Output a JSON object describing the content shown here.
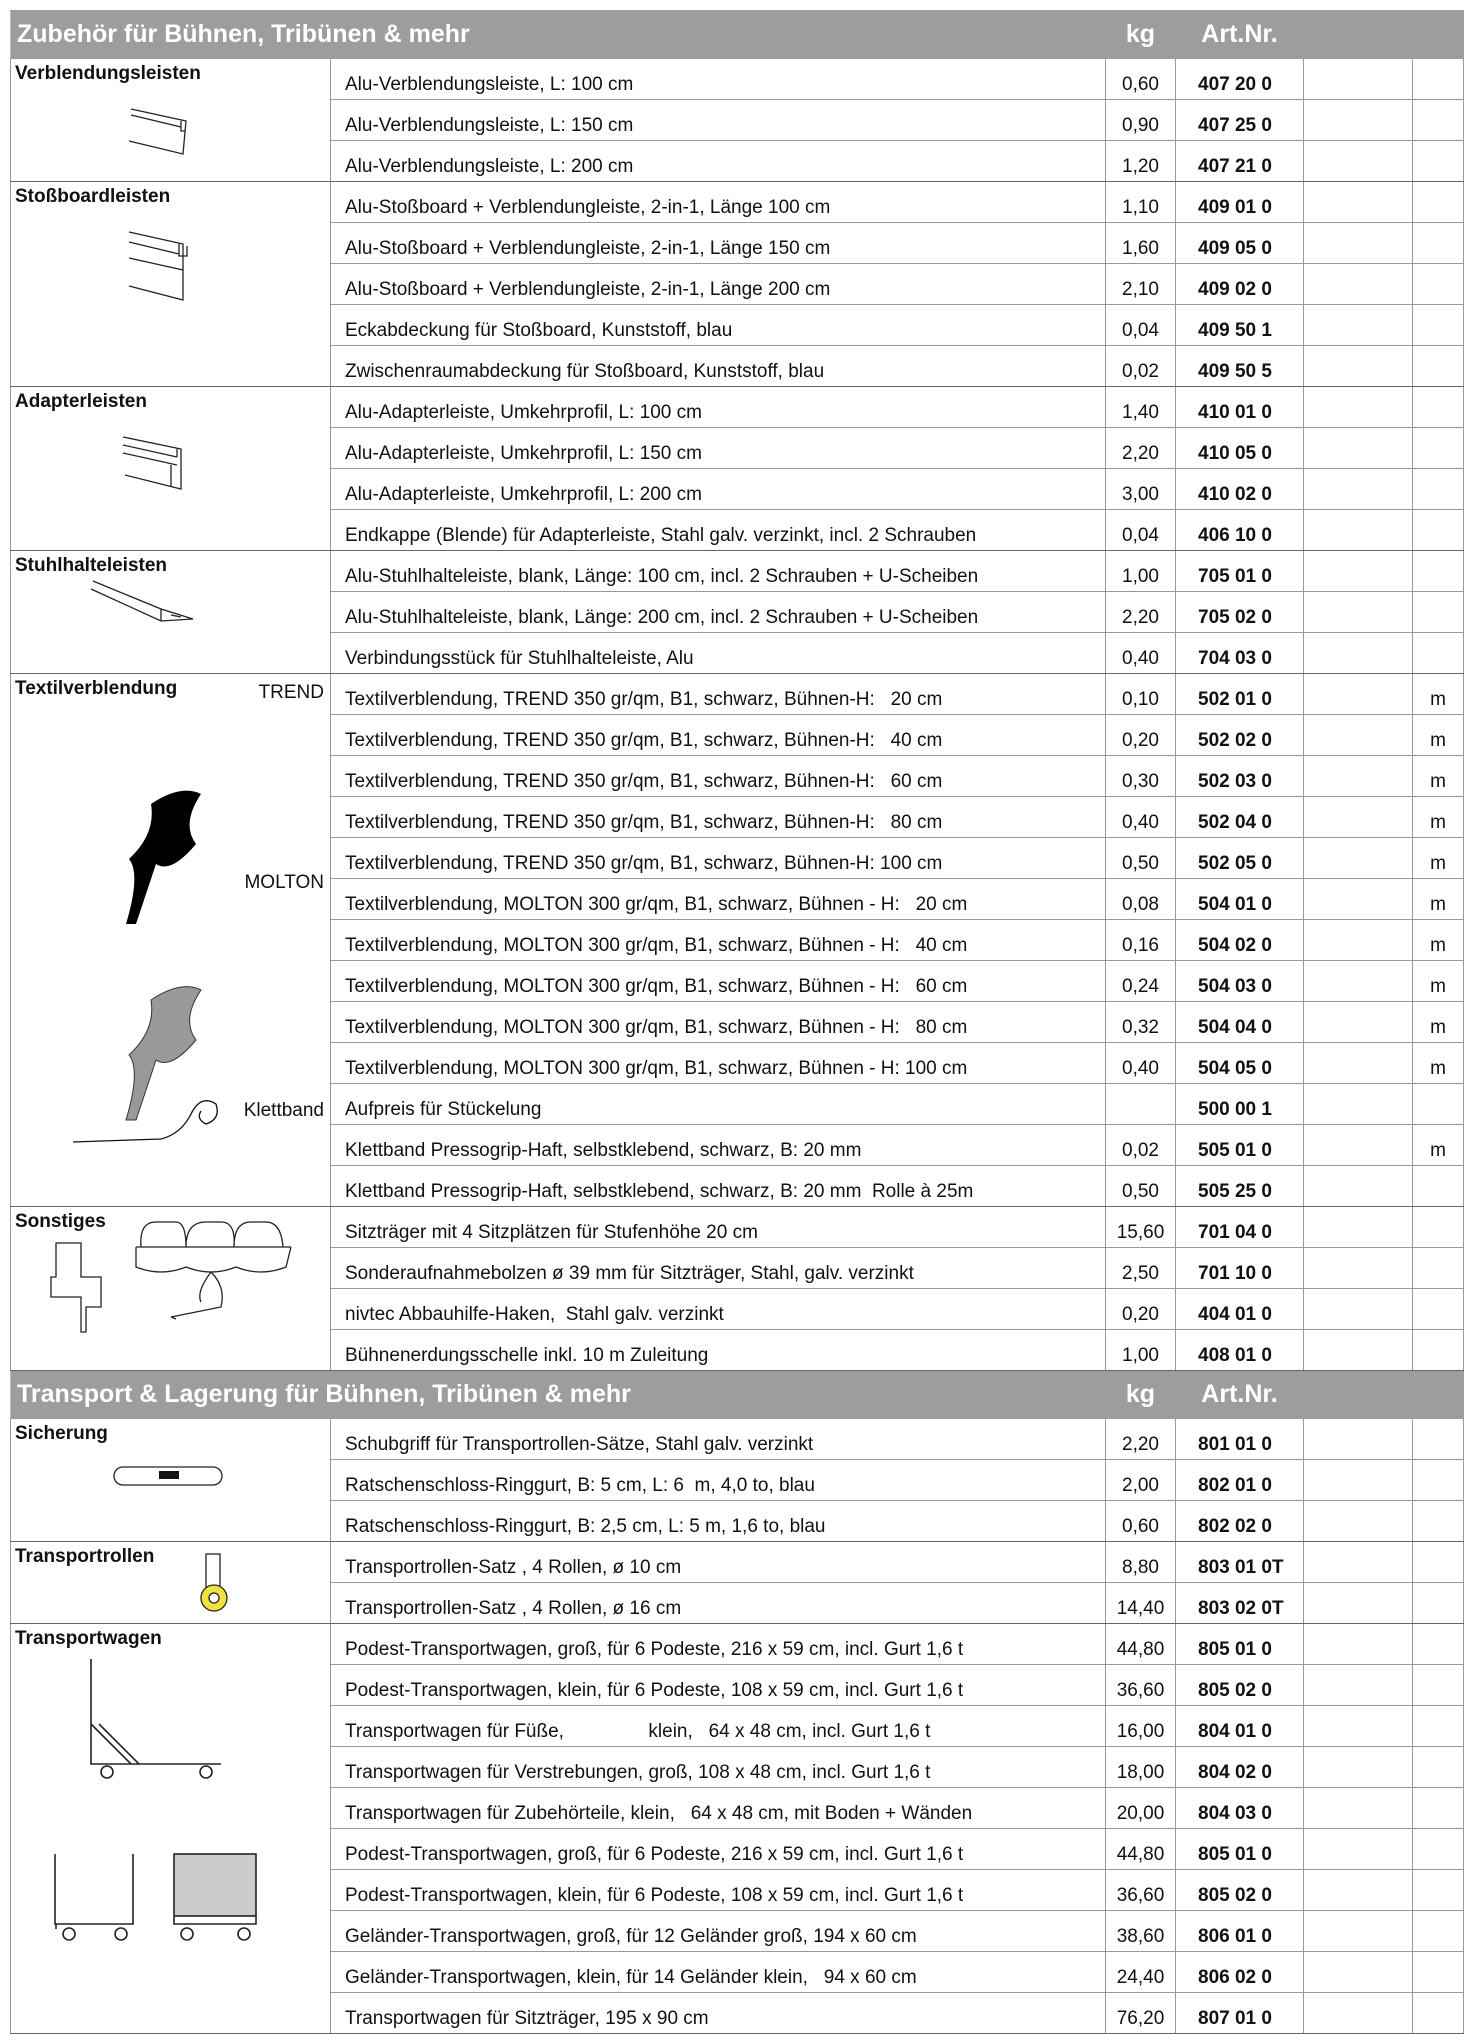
{
  "sections": [
    {
      "header": {
        "title": "Zubehör für Bühnen, Tribünen & mehr",
        "kg": "kg",
        "art": "Art.Nr."
      },
      "groups": [
        {
          "label": "Verblendungsleisten",
          "rows": [
            {
              "desc": "Alu-Verblendungsleiste, L: 100 cm",
              "kg": "0,60",
              "art": "407 20 0"
            },
            {
              "desc": "Alu-Verblendungsleiste, L: 150 cm",
              "kg": "0,90",
              "art": "407 25 0"
            },
            {
              "desc": "Alu-Verblendungsleiste, L: 200 cm",
              "kg": "1,20",
              "art": "407 21 0"
            }
          ]
        },
        {
          "label": "Stoßboardleisten",
          "rows": [
            {
              "desc": "Alu-Stoßboard + Verblendungleiste, 2-in-1, Länge 100 cm",
              "kg": "1,10",
              "art": "409 01 0"
            },
            {
              "desc": "Alu-Stoßboard + Verblendungleiste, 2-in-1, Länge 150 cm",
              "kg": "1,60",
              "art": "409 05 0"
            },
            {
              "desc": "Alu-Stoßboard + Verblendungleiste, 2-in-1, Länge 200 cm",
              "kg": "2,10",
              "art": "409 02 0"
            },
            {
              "desc": "Eckabdeckung für Stoßboard, Kunststoff, blau",
              "kg": "0,04",
              "art": "409 50 1"
            },
            {
              "desc": "Zwischenraumabdeckung für Stoßboard, Kunststoff, blau",
              "kg": "0,02",
              "art": "409 50 5"
            }
          ]
        },
        {
          "label": "Adapterleisten",
          "rows": [
            {
              "desc": "Alu-Adapterleiste, Umkehrprofil, L: 100 cm",
              "kg": "1,40",
              "art": "410 01 0"
            },
            {
              "desc": "Alu-Adapterleiste, Umkehrprofil, L: 150 cm",
              "kg": "2,20",
              "art": "410 05 0"
            },
            {
              "desc": "Alu-Adapterleiste, Umkehrprofil, L: 200 cm",
              "kg": "3,00",
              "art": "410 02 0"
            },
            {
              "desc": "Endkappe (Blende) für Adapterleiste, Stahl galv. verzinkt, incl. 2 Schrauben",
              "kg": "0,04",
              "art": "406 10 0"
            }
          ]
        },
        {
          "label": "Stuhlhalteleisten",
          "rows": [
            {
              "desc": "Alu-Stuhlhalteleiste, blank, Länge: 100 cm, incl. 2 Schrauben + U-Scheiben",
              "kg": "1,00",
              "art": "705 01 0"
            },
            {
              "desc": "Alu-Stuhlhalteleiste, blank, Länge: 200 cm, incl. 2 Schrauben + U-Scheiben",
              "kg": "2,20",
              "art": "705 02 0"
            },
            {
              "desc": "Verbindungsstück für Stuhlhalteleiste, Alu",
              "kg": "0,40",
              "art": "704 03 0"
            }
          ]
        },
        {
          "label": "Textilverblendung",
          "rows": [
            {
              "tag": "TREND",
              "desc": "Textilverblendung, TREND 350 gr/qm, B1, schwarz, Bühnen-H:   20 cm",
              "kg": "0,10",
              "art": "502 01 0",
              "unit": "m"
            },
            {
              "desc": "Textilverblendung, TREND 350 gr/qm, B1, schwarz, Bühnen-H:   40 cm",
              "kg": "0,20",
              "art": "502 02 0",
              "unit": "m"
            },
            {
              "desc": "Textilverblendung, TREND 350 gr/qm, B1, schwarz, Bühnen-H:   60 cm",
              "kg": "0,30",
              "art": "502 03 0",
              "unit": "m"
            },
            {
              "desc": "Textilverblendung, TREND 350 gr/qm, B1, schwarz, Bühnen-H:   80 cm",
              "kg": "0,40",
              "art": "502 04 0",
              "unit": "m"
            },
            {
              "desc": "Textilverblendung, TREND 350 gr/qm, B1, schwarz, Bühnen-H: 100 cm",
              "kg": "0,50",
              "art": "502 05 0",
              "unit": "m"
            },
            {
              "tag": "MOLTON",
              "desc": "Textilverblendung, MOLTON 300 gr/qm, B1, schwarz, Bühnen - H:   20 cm",
              "kg": "0,08",
              "art": "504 01 0",
              "unit": "m"
            },
            {
              "desc": "Textilverblendung, MOLTON 300 gr/qm, B1, schwarz, Bühnen - H:   40 cm",
              "kg": "0,16",
              "art": "504 02 0",
              "unit": "m"
            },
            {
              "desc": "Textilverblendung, MOLTON 300 gr/qm, B1, schwarz, Bühnen - H:   60 cm",
              "kg": "0,24",
              "art": "504 03 0",
              "unit": "m"
            },
            {
              "desc": "Textilverblendung, MOLTON 300 gr/qm, B1, schwarz, Bühnen - H:   80 cm",
              "kg": "0,32",
              "art": "504 04 0",
              "unit": "m"
            },
            {
              "desc": "Textilverblendung, MOLTON 300 gr/qm, B1, schwarz, Bühnen - H: 100 cm",
              "kg": "0,40",
              "art": "504 05 0",
              "unit": "m"
            },
            {
              "desc": "Aufpreis für Stückelung",
              "art": "500 00 1"
            },
            {
              "tag": "Klettband",
              "desc": "Klettband Pressogrip-Haft, selbstklebend, schwarz, B: 20 mm",
              "kg": "0,02",
              "art": "505 01 0",
              "unit": "m"
            },
            {
              "desc": "Klettband Pressogrip-Haft, selbstklebend, schwarz, B: 20 mm  Rolle à 25m",
              "kg": "0,50",
              "art": "505 25 0"
            }
          ]
        },
        {
          "label": "Sonstiges",
          "rows": [
            {
              "desc": "Sitzträger mit 4 Sitzplätzen für Stufenhöhe 20 cm",
              "kg": "15,60",
              "art": "701 04 0"
            },
            {
              "desc": "Sonderaufnahmebolzen ø 39 mm für Sitzträger, Stahl, galv. verzinkt",
              "kg": "2,50",
              "art": "701 10 0"
            },
            {
              "desc": "nivtec Abbauhilfe-Haken,  Stahl galv. verzinkt",
              "kg": "0,20",
              "art": "404 01 0"
            },
            {
              "desc": "Bühnenerdungsschelle inkl. 10 m Zuleitung",
              "kg": "1,00",
              "art": "408 01 0"
            }
          ]
        }
      ]
    },
    {
      "header": {
        "title": "Transport & Lagerung für Bühnen, Tribünen & mehr",
        "kg": "kg",
        "art": "Art.Nr."
      },
      "groups": [
        {
          "label": "Sicherung",
          "rows": [
            {
              "desc": "Schubgriff für Transportrollen-Sätze, Stahl galv. verzinkt",
              "kg": "2,20",
              "art": "801 01 0"
            },
            {
              "desc": "Ratschenschloss-Ringgurt, B: 5 cm, L: 6  m, 4,0 to, blau",
              "kg": "2,00",
              "art": "802 01 0"
            },
            {
              "desc": "Ratschenschloss-Ringgurt, B: 2,5 cm, L: 5 m, 1,6 to, blau",
              "kg": "0,60",
              "art": "802 02 0"
            }
          ]
        },
        {
          "label": "Transportrollen",
          "rows": [
            {
              "desc": "Transportrollen-Satz , 4 Rollen, ø 10 cm",
              "kg": "8,80",
              "art": "803 01 0T"
            },
            {
              "desc": "Transportrollen-Satz , 4 Rollen, ø 16 cm",
              "kg": "14,40",
              "art": "803 02 0T"
            }
          ]
        },
        {
          "label": "Transportwagen",
          "rows": [
            {
              "desc": "Podest-Transportwagen, groß, für 6 Podeste, 216 x 59 cm, incl. Gurt 1,6 t",
              "kg": "44,80",
              "art": "805 01 0"
            },
            {
              "desc": "Podest-Transportwagen, klein, für 6 Podeste, 108 x 59 cm, incl. Gurt 1,6 t",
              "kg": "36,60",
              "art": "805 02 0"
            },
            {
              "desc": "Transportwagen für Füße,                klein,   64 x 48 cm, incl. Gurt 1,6 t",
              "kg": "16,00",
              "art": "804 01 0"
            },
            {
              "desc": "Transportwagen für Verstrebungen, groß, 108 x 48 cm, incl. Gurt 1,6 t",
              "kg": "18,00",
              "art": "804 02 0"
            },
            {
              "desc": "Transportwagen für Zubehörteile, klein,   64 x 48 cm, mit Boden + Wänden",
              "kg": "20,00",
              "art": "804 03 0"
            },
            {
              "desc": "Podest-Transportwagen, groß, für 6 Podeste, 216 x 59 cm, incl. Gurt 1,6 t",
              "kg": "44,80",
              "art": "805 01 0"
            },
            {
              "desc": "Podest-Transportwagen, klein, für 6 Podeste, 108 x 59 cm, incl. Gurt 1,6 t",
              "kg": "36,60",
              "art": "805 02 0"
            },
            {
              "desc": "Geländer-Transportwagen, groß, für 12 Geländer groß, 194 x 60 cm",
              "kg": "38,60",
              "art": "806 01 0"
            },
            {
              "desc": "Geländer-Transportwagen, klein, für 14 Geländer klein,   94 x 60 cm",
              "kg": "24,40",
              "art": "806 02 0"
            },
            {
              "desc": "Transportwagen für Sitzträger, 195 x 90 cm",
              "kg": "76,20",
              "art": "807 01 0"
            }
          ]
        }
      ]
    }
  ]
}
